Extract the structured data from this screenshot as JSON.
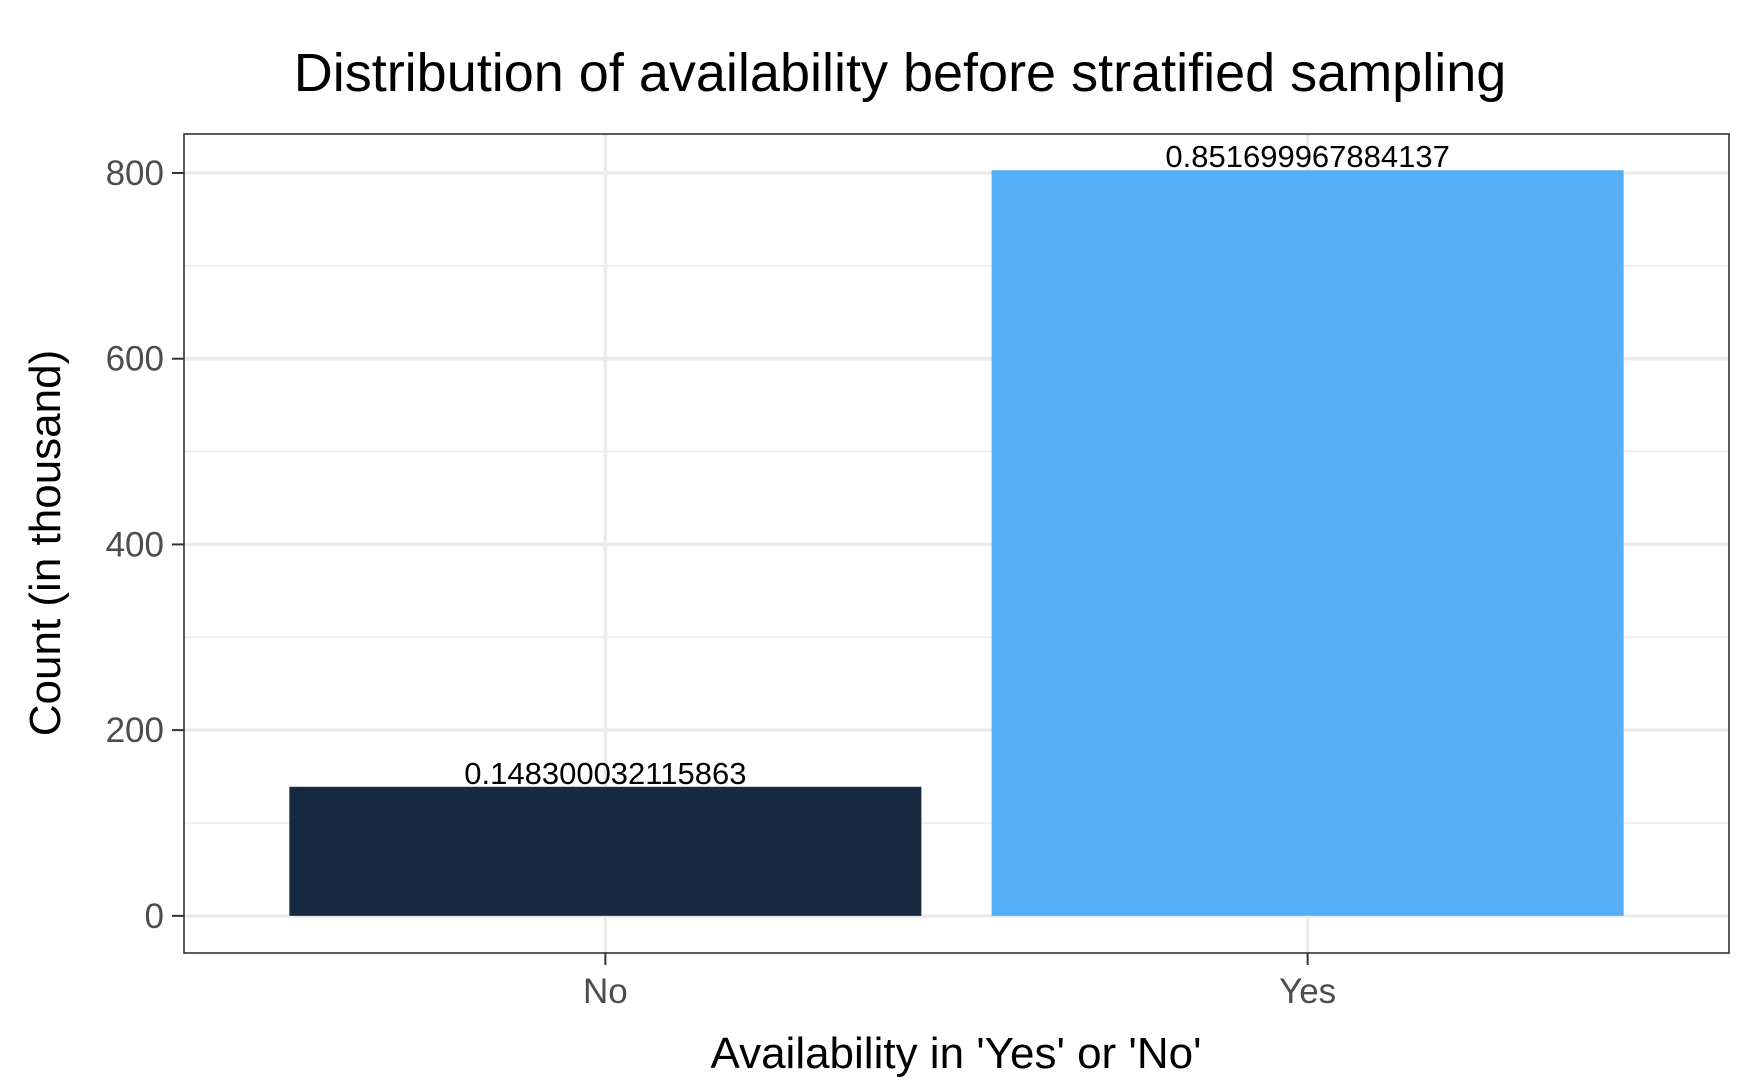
{
  "chart_data": {
    "type": "bar",
    "title": "Distribution of availability before stratified sampling",
    "xlabel": "Availability in 'Yes' or 'No'",
    "ylabel": "Count (in thousand)",
    "categories": [
      "No",
      "Yes"
    ],
    "values": [
      139,
      803
    ],
    "bar_labels": [
      "0.148300032115863",
      "0.851699967884137"
    ],
    "colors": [
      "#182a42",
      "#56aff5"
    ],
    "ylim": [
      -40,
      842
    ],
    "yticks": [
      0,
      200,
      400,
      600,
      800
    ],
    "ytick_labels": [
      "0",
      "200",
      "400",
      "600",
      "800"
    ],
    "grid": true,
    "legend": "none"
  }
}
